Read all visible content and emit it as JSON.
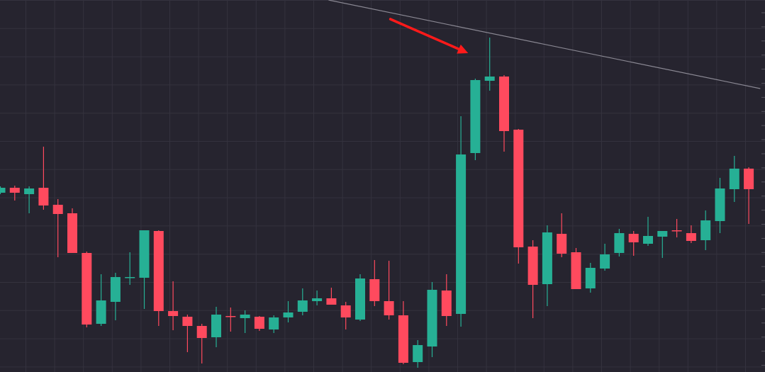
{
  "chart_data": {
    "type": "candlestick",
    "title": "",
    "xlabel": "",
    "ylabel": "",
    "grid": true,
    "legend": "none",
    "colors": {
      "background": "#26242f",
      "grid": "#34323e",
      "up": "#26b095",
      "down": "#ff4a5e",
      "trendline": "#8a8893",
      "arrow": "#ff1a1a"
    },
    "fields": [
      "open",
      "high",
      "low",
      "close"
    ],
    "candles": [
      [
        253,
        262,
        251,
        260
      ],
      [
        260,
        263,
        242,
        253
      ],
      [
        251,
        262,
        224,
        259
      ],
      [
        260,
        318,
        229,
        235
      ],
      [
        236,
        244,
        162,
        223
      ],
      [
        224,
        231,
        168,
        168
      ],
      [
        168,
        170,
        63,
        67
      ],
      [
        68,
        138,
        65,
        101
      ],
      [
        99,
        140,
        73,
        134
      ],
      [
        133,
        169,
        123,
        134
      ],
      [
        133,
        200,
        89,
        200
      ],
      [
        199,
        200,
        65,
        86
      ],
      [
        86,
        128,
        59,
        79
      ],
      [
        78,
        81,
        28,
        65
      ],
      [
        65,
        68,
        12,
        48
      ],
      [
        49,
        92,
        35,
        81
      ],
      [
        79,
        91,
        57,
        78
      ],
      [
        76,
        87,
        55,
        81
      ],
      [
        78,
        79,
        58,
        61
      ],
      [
        60,
        80,
        55,
        77
      ],
      [
        77,
        100,
        70,
        84
      ],
      [
        85,
        118,
        80,
        101
      ],
      [
        100,
        115,
        94,
        104
      ],
      [
        104,
        119,
        95,
        95
      ],
      [
        94,
        99,
        60,
        77
      ],
      [
        74,
        138,
        72,
        132
      ],
      [
        131,
        158,
        93,
        100
      ],
      [
        100,
        157,
        74,
        80
      ],
      [
        80,
        100,
        11,
        13
      ],
      [
        14,
        45,
        6,
        38
      ],
      [
        36,
        127,
        21,
        116
      ],
      [
        115,
        138,
        65,
        79
      ],
      [
        82,
        361,
        64,
        307
      ],
      [
        309,
        414,
        299,
        412
      ],
      [
        411,
        472,
        397,
        417
      ],
      [
        417,
        419,
        311,
        340
      ],
      [
        342,
        343,
        153,
        176
      ],
      [
        177,
        186,
        76,
        123
      ],
      [
        124,
        207,
        93,
        197
      ],
      [
        195,
        224,
        162,
        167
      ],
      [
        169,
        175,
        117,
        117
      ],
      [
        118,
        154,
        112,
        147
      ],
      [
        146,
        181,
        143,
        166
      ],
      [
        168,
        202,
        163,
        196
      ],
      [
        195,
        199,
        164,
        183
      ],
      [
        181,
        219,
        178,
        192
      ],
      [
        191,
        199,
        161,
        199
      ],
      [
        200,
        216,
        190,
        199
      ],
      [
        196,
        207,
        182,
        185
      ],
      [
        186,
        228,
        172,
        214
      ],
      [
        213,
        274,
        196,
        259
      ],
      [
        258,
        305,
        240,
        287
      ],
      [
        287,
        289,
        209,
        258
      ]
    ],
    "annotations": [
      {
        "type": "trendline",
        "from": [
          22.8,
          525
        ],
        "to": [
          52.8,
          400
        ]
      },
      {
        "type": "arrow",
        "from": [
          27.1,
          498
        ],
        "to": [
          32.5,
          450
        ]
      }
    ]
  }
}
